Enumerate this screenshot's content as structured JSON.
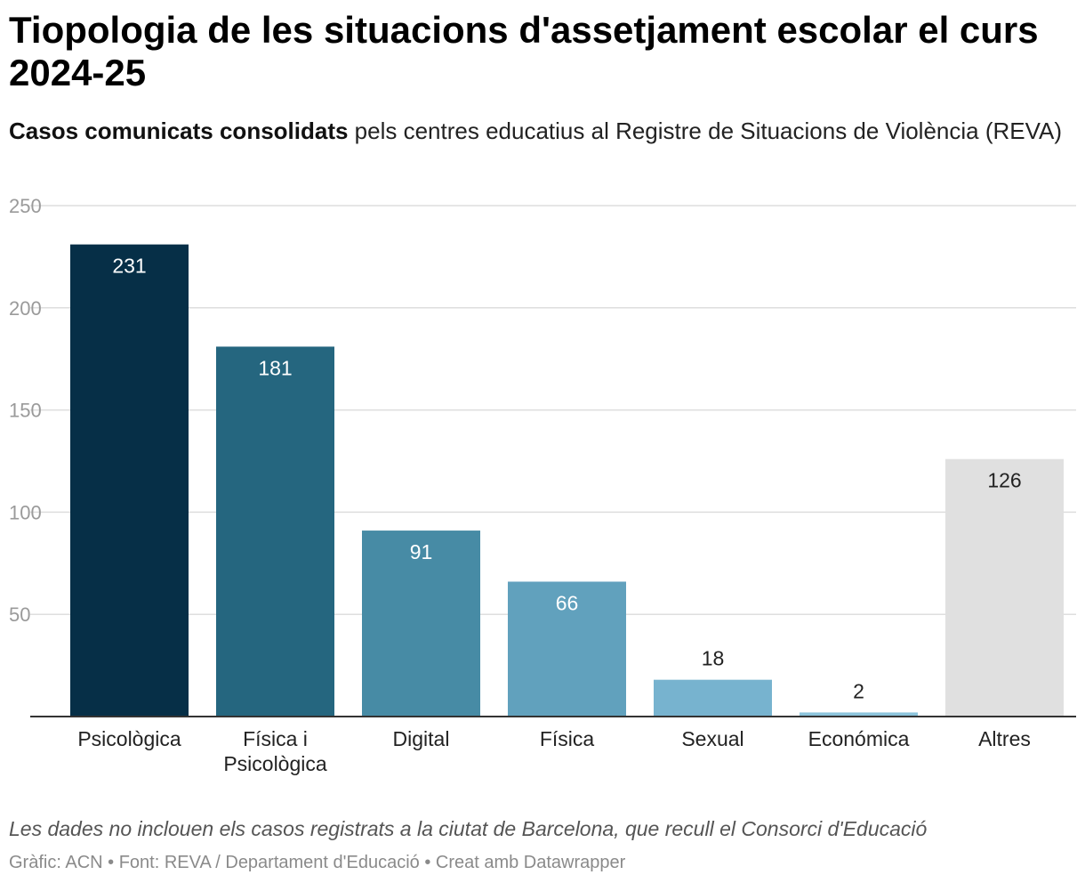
{
  "header": {
    "title": "Tiopologia de les situacions d'assetjament escolar el curs 2024-25",
    "subtitle_bold": "Casos comunicats consolidats",
    "subtitle_rest": " pels centres educatius al Registre de Situacions de Violència (REVA)"
  },
  "footer": {
    "note": "Les dades no inclouen els casos registrats a la ciutat de Barcelona, que recull el Consorci d'Educació",
    "credits": "Gràfic: ACN • Font: REVA / Departament d'Educació • Creat amb Datawrapper"
  },
  "chart_data": {
    "type": "bar",
    "title": "Tiopologia de les situacions d'assetjament escolar el curs 2024-25",
    "xlabel": "",
    "ylabel": "",
    "ylim": [
      0,
      250
    ],
    "yticks": [
      50,
      100,
      150,
      200,
      250
    ],
    "grid": true,
    "categories": [
      [
        "Psicològica"
      ],
      [
        "Física i",
        "Psicològica"
      ],
      [
        "Digital"
      ],
      [
        "Física"
      ],
      [
        "Sexual"
      ],
      [
        "Económica"
      ],
      [
        "Altres"
      ]
    ],
    "values": [
      231,
      181,
      91,
      66,
      18,
      2,
      126
    ],
    "colors": [
      "#062f47",
      "#25667f",
      "#478ba5",
      "#61a1bd",
      "#77b3cf",
      "#8cc4dc",
      "#e0e0e0"
    ],
    "label_colors": [
      "#ffffff",
      "#ffffff",
      "#ffffff",
      "#ffffff",
      "#222222",
      "#222222",
      "#222222"
    ]
  }
}
